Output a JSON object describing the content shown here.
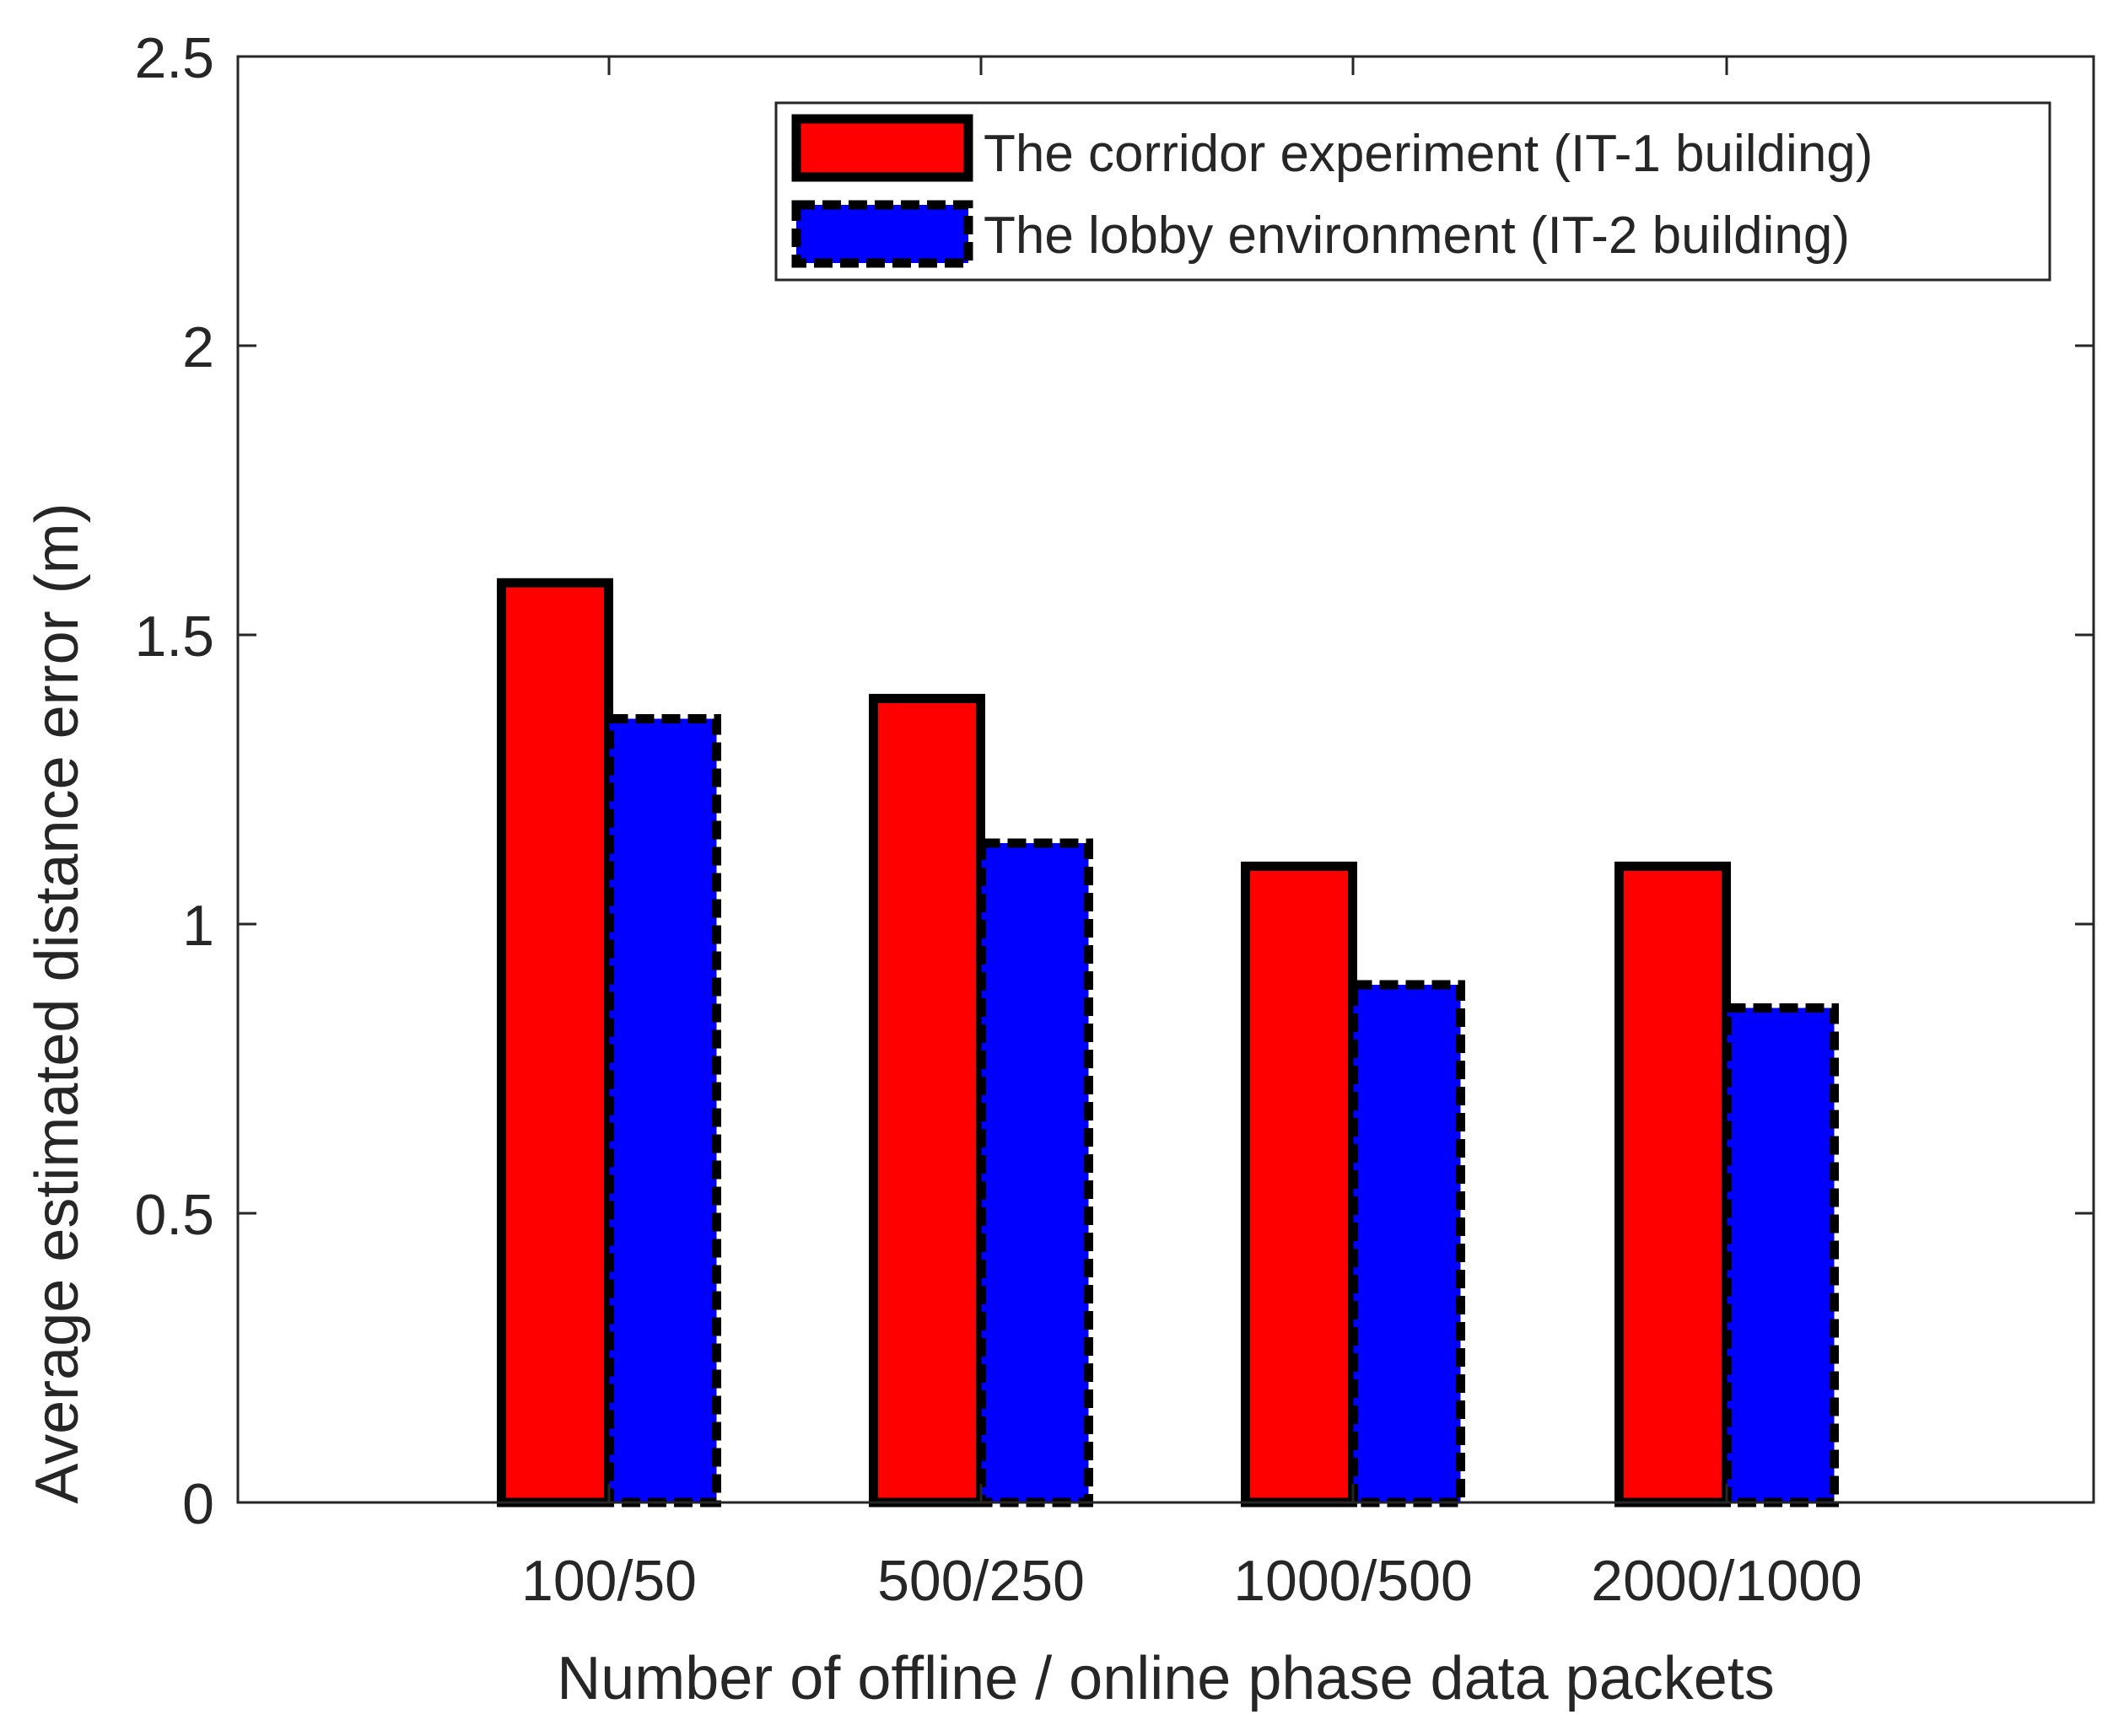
{
  "chart_data": {
    "type": "bar",
    "title": "",
    "xlabel": "Number of offline / online phase data packets",
    "ylabel": "Average estimated distance error (m)",
    "categories": [
      "100/50",
      "500/250",
      "1000/500",
      "2000/1000"
    ],
    "ylim": [
      0,
      2.5
    ],
    "yticks": [
      0,
      0.5,
      1,
      1.5,
      2,
      2.5
    ],
    "ytick_labels": [
      "0",
      "0.5",
      "1",
      "1.5",
      "2",
      "2.5"
    ],
    "grid": false,
    "legend_position": "top-right",
    "series": [
      {
        "name": "The corridor experiment (IT-1 building)",
        "values": [
          1.59,
          1.39,
          1.1,
          1.1
        ],
        "color": "#ff0000",
        "edge_color": "#000000",
        "edge_style": "solid"
      },
      {
        "name": "The lobby environment (IT-2 building)",
        "values": [
          1.355,
          1.14,
          0.895,
          0.855
        ],
        "color": "#0000ff",
        "edge_color": "#000000",
        "edge_style": "dashed"
      }
    ]
  }
}
